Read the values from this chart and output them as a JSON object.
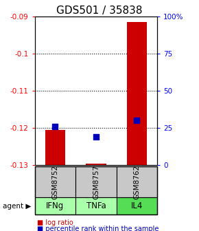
{
  "title": "GDS501 / 35838",
  "samples": [
    "GSM8752",
    "GSM8757",
    "GSM8762"
  ],
  "agents": [
    "IFNg",
    "TNFa",
    "IL4"
  ],
  "agent_colors": [
    "#AAFFAA",
    "#AAFFAA",
    "#55DD55"
  ],
  "sample_bg_color": "#C8C8C8",
  "log_ratios": [
    -0.1205,
    -0.1295,
    -0.0915
  ],
  "baseline": -0.13,
  "percentile_ranks": [
    26,
    19,
    30
  ],
  "ylim_left": [
    -0.13,
    -0.09
  ],
  "ylim_right": [
    0,
    100
  ],
  "yticks_left": [
    -0.13,
    -0.12,
    -0.11,
    -0.1,
    -0.09
  ],
  "yticks_right": [
    0,
    25,
    50,
    75,
    100
  ],
  "ytick_labels_right": [
    "0",
    "25",
    "50",
    "75",
    "100%"
  ],
  "bar_color": "#CC0000",
  "dot_color": "#0000BB",
  "bar_width": 0.5,
  "dot_size": 35,
  "title_fontsize": 11,
  "tick_fontsize": 7.5,
  "label_fontsize": 7.5,
  "sample_label_fontsize": 7.5,
  "agent_label_fontsize": 8.5,
  "legend_fontsize": 7,
  "grid_linestyle": "dotted"
}
